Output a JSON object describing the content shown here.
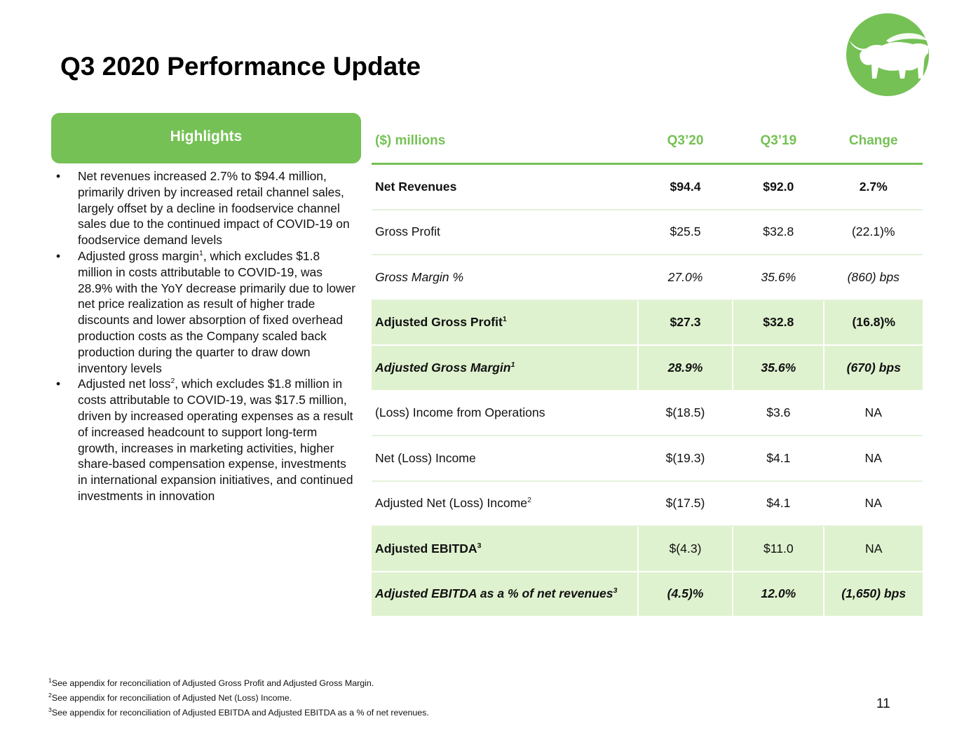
{
  "title": "Q3 2020 Performance Update",
  "logo_name": "beyond-meat-steer-logo",
  "brand_color": "#75c155",
  "highlight_fill": "#dff2cf",
  "highlights": {
    "header": "Highlights",
    "bullets": [
      {
        "pre": "Net revenues increased 2.7% to $94.4 million, primarily driven by increased retail channel sales, largely offset by a decline in foodservice channel sales due to the continued impact of COVID-19 on foodservice demand levels",
        "sup": "",
        "post": ""
      },
      {
        "pre": " Adjusted gross margin",
        "sup": "1",
        "post": ", which excludes $1.8 million in costs attributable to COVID-19, was 28.9% with the YoY decrease primarily due to lower net price realization as result of higher trade discounts and lower absorption of fixed overhead production costs as the Company scaled back production during the quarter to draw down inventory levels"
      },
      {
        "pre": " Adjusted net loss",
        "sup": "2",
        "post": ", which excludes $1.8 million in costs attributable to COVID-19, was $17.5 million, driven by increased operating expenses as a result of increased headcount to support long-term growth, increases in marketing activities, higher share-based compensation expense, investments in international expansion initiatives, and continued investments in innovation"
      }
    ]
  },
  "table": {
    "headers": [
      "($) millions",
      "Q3’20",
      "Q3’19",
      "Change"
    ],
    "rows": [
      {
        "label": "Net Revenues",
        "sup": "",
        "q320": "$94.4",
        "q319": "$92.0",
        "change": "2.7%",
        "style": "b"
      },
      {
        "label": "Gross Profit",
        "sup": "",
        "q320": "$25.5",
        "q319": "$32.8",
        "change": "(22.1)%",
        "style": ""
      },
      {
        "label": "Gross Margin %",
        "sup": "",
        "q320": "27.0%",
        "q319": "35.6%",
        "change": "(860) bps",
        "style": "i"
      },
      {
        "label": "Adjusted Gross Profit",
        "sup": "1",
        "q320": "$27.3",
        "q319": "$32.8",
        "change": "(16.8)%",
        "style": "b hi"
      },
      {
        "label": "Adjusted Gross Margin",
        "sup": "1",
        "q320": "28.9%",
        "q319": "35.6%",
        "change": "(670) bps",
        "style": "b i hi"
      },
      {
        "label": "(Loss) Income from Operations",
        "sup": "",
        "q320": "$(18.5)",
        "q319": "$3.6",
        "change": "NA",
        "style": ""
      },
      {
        "label": "Net (Loss) Income",
        "sup": "",
        "q320": "$(19.3)",
        "q319": "$4.1",
        "change": "NA",
        "style": ""
      },
      {
        "label": "Adjusted Net (Loss) Income",
        "sup": "2",
        "q320": "$(17.5)",
        "q319": "$4.1",
        "change": "NA",
        "style": ""
      },
      {
        "label": "Adjusted EBITDA",
        "sup": "3",
        "q320": "$(4.3)",
        "q319": "$11.0",
        "change": "NA",
        "style": "hi lb"
      },
      {
        "label": "Adjusted EBITDA as a % of net revenues",
        "sup": "3",
        "q320": "(4.5)%",
        "q319": "12.0%",
        "change": "(1,650) bps",
        "style": "b i hi last"
      }
    ]
  },
  "footnotes": [
    {
      "num": "1",
      "text": "See appendix for reconciliation of Adjusted Gross Profit and Adjusted Gross Margin."
    },
    {
      "num": "2",
      "text": "See appendix for reconciliation of Adjusted Net (Loss) Income."
    },
    {
      "num": "3",
      "text": "See appendix for reconciliation of Adjusted EBITDA and Adjusted EBITDA as a % of net revenues."
    }
  ],
  "page_number": "11"
}
